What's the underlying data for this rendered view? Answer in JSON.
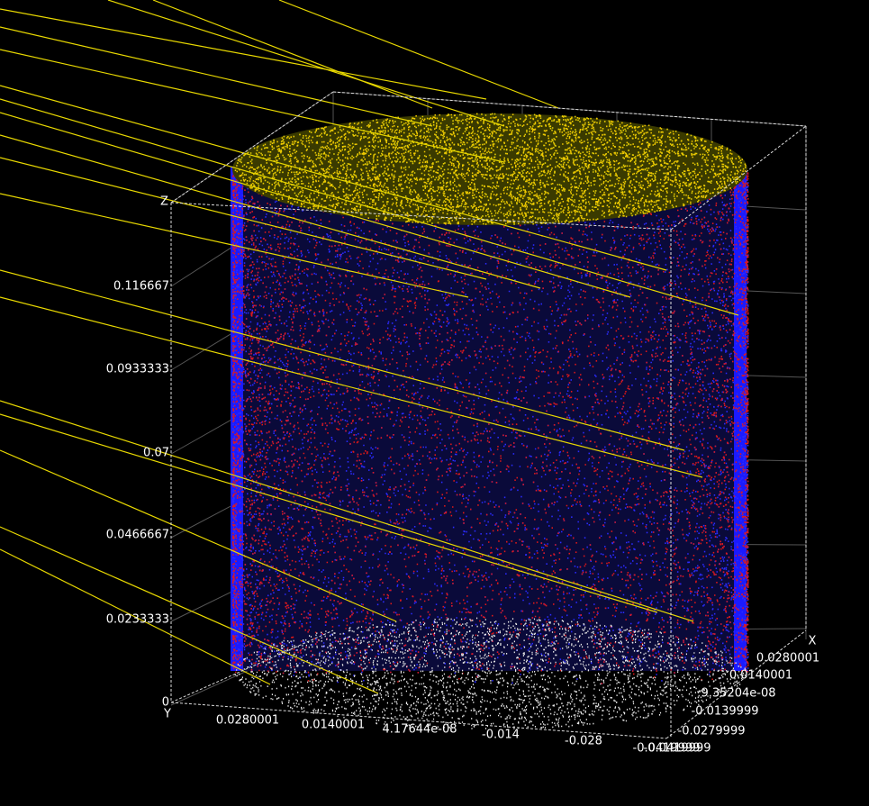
{
  "axes": {
    "z": {
      "name": "Z",
      "ticks": [
        "0",
        "0.0233333",
        "0.0466667",
        "0.07",
        "0.0933333",
        "0.116667"
      ]
    },
    "y": {
      "name": "Y",
      "ticks": [
        "0.0280001",
        "0.0140001",
        "4.17644e-08",
        "-0.014",
        "-0.028",
        "-0.0419999"
      ]
    },
    "x": {
      "name": "X",
      "ticks": [
        "0.0280001",
        "0.0140001",
        "9.35204e-08",
        "-0.0139999",
        "-0.0279999",
        "-0.0419999"
      ]
    }
  }
}
